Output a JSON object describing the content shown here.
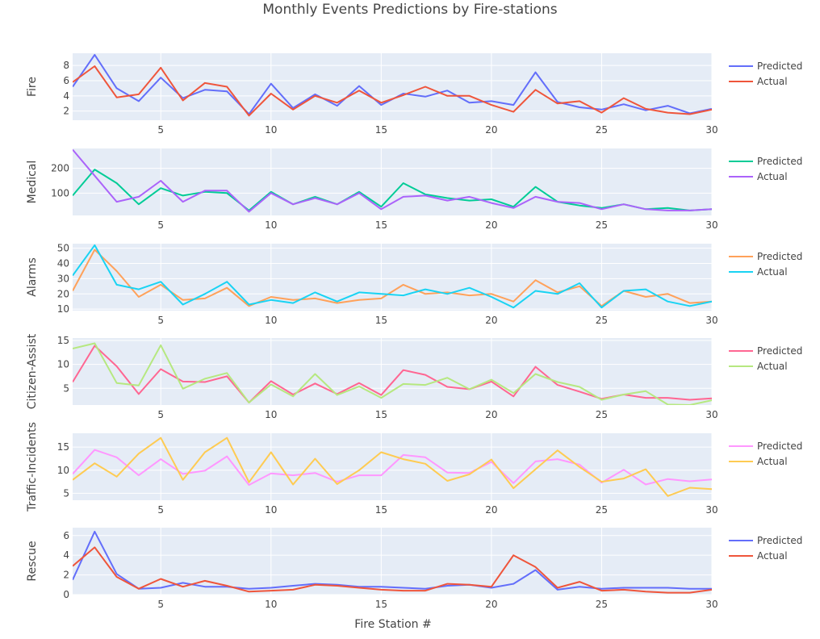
{
  "chart_data": {
    "type": "line",
    "title": "Monthly Events Predictions by Fire-stations",
    "xlabel": "Fire Station #",
    "xlim": [
      1,
      30
    ],
    "x_ticks": [
      5,
      10,
      15,
      20,
      25,
      30
    ],
    "x": [
      1,
      2,
      3,
      4,
      5,
      6,
      7,
      8,
      9,
      10,
      11,
      12,
      13,
      14,
      15,
      16,
      17,
      18,
      19,
      20,
      21,
      22,
      23,
      24,
      25,
      26,
      27,
      28,
      29,
      30
    ],
    "subplots": [
      {
        "ylabel": "Fire",
        "ylim": [
          0.8,
          9.6
        ],
        "y_ticks": [
          2,
          4,
          6,
          8
        ],
        "series": [
          {
            "name": "Predicted",
            "color": "#636efa",
            "values": [
              5.2,
              9.4,
              5.0,
              3.3,
              6.4,
              3.7,
              4.8,
              4.6,
              1.6,
              5.6,
              2.4,
              4.2,
              2.7,
              5.3,
              2.8,
              4.3,
              3.9,
              4.7,
              3.1,
              3.3,
              2.8,
              7.1,
              3.2,
              2.5,
              2.2,
              2.9,
              2.1,
              2.7,
              1.7,
              2.3
            ]
          },
          {
            "name": "Actual",
            "color": "#ef553b",
            "values": [
              5.8,
              7.9,
              3.8,
              4.2,
              7.7,
              3.4,
              5.7,
              5.2,
              1.4,
              4.3,
              2.2,
              4.0,
              3.1,
              4.7,
              3.1,
              4.1,
              5.2,
              4.0,
              4.0,
              2.8,
              1.9,
              4.8,
              3.0,
              3.3,
              1.8,
              3.7,
              2.3,
              1.8,
              1.6,
              2.2
            ]
          }
        ]
      },
      {
        "ylabel": "Medical",
        "ylim": [
          10,
          280
        ],
        "y_ticks": [
          100,
          200
        ],
        "series": [
          {
            "name": "Predicted",
            "color": "#00cc96",
            "values": [
              90,
              195,
              140,
              55,
              120,
              90,
              105,
              100,
              30,
              105,
              55,
              85,
              55,
              105,
              45,
              140,
              95,
              80,
              70,
              75,
              45,
              125,
              65,
              50,
              40,
              55,
              35,
              40,
              30,
              35
            ]
          },
          {
            "name": "Actual",
            "color": "#ab63fa",
            "values": [
              275,
              170,
              65,
              85,
              150,
              65,
              110,
              110,
              25,
              100,
              55,
              80,
              55,
              100,
              35,
              85,
              90,
              70,
              85,
              60,
              40,
              85,
              65,
              60,
              35,
              55,
              35,
              30,
              30,
              35
            ]
          }
        ]
      },
      {
        "ylabel": "Alarms",
        "ylim": [
          9,
          53
        ],
        "y_ticks": [
          10,
          20,
          30,
          40,
          50
        ],
        "series": [
          {
            "name": "Predicted",
            "color": "#ffa15a",
            "values": [
              22,
              49,
              35,
              18,
              26,
              16,
              17,
              24,
              12,
              18,
              16,
              17,
              14,
              16,
              17,
              26,
              20,
              21,
              19,
              20,
              15,
              29,
              21,
              25,
              12,
              22,
              18,
              20,
              14,
              15
            ]
          },
          {
            "name": "Actual",
            "color": "#19d3f3",
            "values": [
              32,
              52,
              26,
              23,
              28,
              13,
              20,
              28,
              13,
              16,
              14,
              21,
              15,
              21,
              20,
              19,
              23,
              20,
              24,
              18,
              11,
              22,
              20,
              27,
              11,
              22,
              23,
              15,
              12,
              15
            ]
          }
        ]
      },
      {
        "ylabel": "Citizen-Assist",
        "ylim": [
          1.5,
          15.5
        ],
        "y_ticks": [
          5,
          10,
          15
        ],
        "series": [
          {
            "name": "Predicted",
            "color": "#ff6692",
            "values": [
              6.3,
              13.9,
              9.6,
              3.8,
              9.0,
              6.4,
              6.3,
              7.5,
              2.0,
              6.5,
              3.7,
              6.0,
              3.8,
              6.1,
              3.6,
              8.8,
              7.8,
              5.3,
              4.8,
              6.4,
              3.3,
              9.5,
              5.7,
              4.3,
              2.8,
              3.7,
              3.0,
              3.0,
              2.6,
              2.9
            ]
          },
          {
            "name": "Actual",
            "color": "#b6e880",
            "values": [
              13.3,
              14.4,
              6.1,
              5.6,
              14.0,
              4.9,
              7.0,
              8.2,
              2.0,
              5.8,
              3.3,
              8.0,
              3.6,
              5.4,
              3.0,
              5.9,
              5.7,
              7.2,
              4.8,
              6.8,
              4.0,
              8.0,
              6.3,
              5.3,
              2.6,
              3.7,
              4.4,
              1.6,
              1.5,
              2.5
            ]
          }
        ]
      },
      {
        "ylabel": "Traffic-Incidents",
        "ylim": [
          3.5,
          18
        ],
        "y_ticks": [
          5,
          10,
          15
        ],
        "series": [
          {
            "name": "Predicted",
            "color": "#ff97ff",
            "values": [
              9.2,
              14.4,
              12.8,
              8.9,
              12.4,
              9.2,
              9.9,
              13.0,
              6.8,
              9.3,
              8.9,
              9.4,
              7.5,
              8.9,
              8.9,
              13.3,
              12.8,
              9.5,
              9.4,
              11.8,
              7.2,
              11.9,
              12.4,
              11.2,
              7.3,
              10.1,
              6.9,
              8.1,
              7.6,
              8.0
            ]
          },
          {
            "name": "Actual",
            "color": "#fecb52",
            "values": [
              7.9,
              11.5,
              8.6,
              13.6,
              17.0,
              7.9,
              13.9,
              17.0,
              7.4,
              13.9,
              6.9,
              12.5,
              7.0,
              10.0,
              13.9,
              12.4,
              11.4,
              7.7,
              9.1,
              12.3,
              6.1,
              10.2,
              14.3,
              10.7,
              7.5,
              8.2,
              10.2,
              4.4,
              6.2,
              5.9
            ]
          }
        ]
      },
      {
        "ylabel": "Rescue",
        "ylim": [
          0,
          6.8
        ],
        "y_ticks": [
          0,
          2,
          4,
          6
        ],
        "series": [
          {
            "name": "Predicted",
            "color": "#636efa",
            "values": [
              1.5,
              6.4,
              2.1,
              0.6,
              0.7,
              1.2,
              0.8,
              0.8,
              0.6,
              0.7,
              0.9,
              1.1,
              1.0,
              0.8,
              0.8,
              0.7,
              0.6,
              0.9,
              1.0,
              0.7,
              1.1,
              2.5,
              0.5,
              0.8,
              0.6,
              0.7,
              0.7,
              0.7,
              0.6,
              0.6
            ]
          },
          {
            "name": "Actual",
            "color": "#ef553b",
            "values": [
              2.9,
              4.8,
              1.8,
              0.6,
              1.6,
              0.8,
              1.4,
              0.9,
              0.3,
              0.4,
              0.5,
              1.0,
              0.9,
              0.7,
              0.5,
              0.4,
              0.4,
              1.1,
              1.0,
              0.8,
              4.0,
              2.8,
              0.7,
              1.3,
              0.4,
              0.5,
              0.3,
              0.2,
              0.2,
              0.5
            ]
          }
        ]
      }
    ]
  }
}
